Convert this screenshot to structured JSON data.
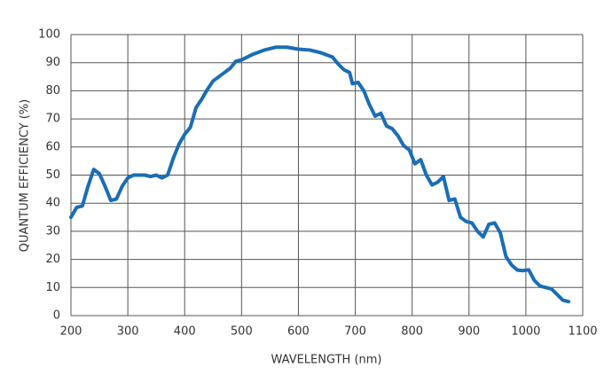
{
  "chart_data": {
    "type": "line",
    "x_label": "WAVELENGTH (nm)",
    "y_label": "QUANTUM EFFICIENCY (%)",
    "xlim": [
      200,
      1100
    ],
    "ylim": [
      0,
      100
    ],
    "xticks": [
      200,
      300,
      400,
      500,
      600,
      700,
      800,
      900,
      1000,
      1100
    ],
    "yticks": [
      0,
      10,
      20,
      30,
      40,
      50,
      60,
      70,
      80,
      90,
      100
    ],
    "grid": true,
    "series": [
      {
        "color": "#1a6db5",
        "x": [
          200,
          210,
          220,
          230,
          240,
          250,
          260,
          270,
          280,
          290,
          300,
          310,
          330,
          340,
          350,
          360,
          370,
          380,
          390,
          400,
          410,
          420,
          430,
          440,
          450,
          460,
          470,
          480,
          490,
          500,
          520,
          540,
          560,
          580,
          600,
          620,
          640,
          660,
          670,
          680,
          690,
          695,
          705,
          715,
          725,
          735,
          745,
          755,
          765,
          775,
          785,
          795,
          805,
          815,
          825,
          835,
          845,
          855,
          865,
          875,
          885,
          895,
          905,
          915,
          925,
          935,
          945,
          955,
          965,
          975,
          985,
          995,
          1005,
          1015,
          1025,
          1035,
          1045,
          1055,
          1065,
          1075
        ],
        "values": [
          35,
          38.5,
          39,
          46,
          52,
          50.5,
          46,
          41,
          41.5,
          46,
          49,
          50,
          50,
          49.5,
          50,
          49,
          50,
          56,
          61,
          64.5,
          67,
          74,
          77,
          80.5,
          83.5,
          85,
          86.5,
          88,
          90.5,
          91,
          93,
          94.5,
          95.5,
          95.5,
          94.8,
          94.5,
          93.5,
          92,
          89.5,
          87.5,
          86.5,
          82.5,
          83,
          80,
          75,
          71,
          72,
          67.5,
          66.5,
          64,
          60.5,
          59,
          54,
          55.5,
          50,
          46.5,
          47.5,
          49.5,
          41,
          41.5,
          35,
          33.5,
          33,
          30,
          28,
          32.5,
          33,
          29.5,
          21,
          18,
          16.2,
          16,
          16.3,
          12.5,
          10.5,
          10,
          9.5,
          7.5,
          5.5,
          5
        ]
      }
    ]
  }
}
